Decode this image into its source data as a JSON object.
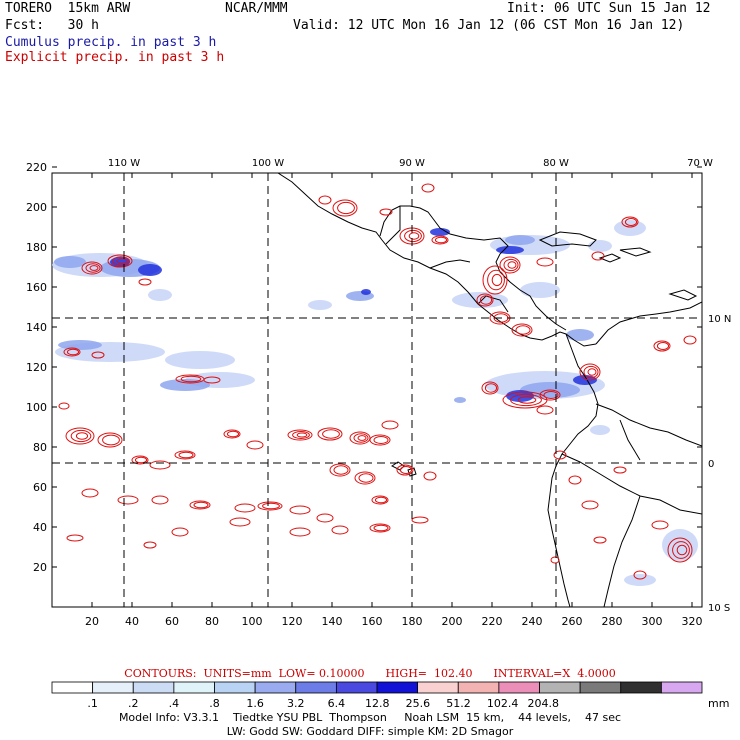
{
  "header": {
    "model": "TORERO  15km ARW",
    "org": "NCAR/MMM",
    "init": "Init: 06 UTC Sun 15 Jan 12",
    "fcst": "Fcst:   30 h",
    "valid": "Valid: 12 UTC Mon 16 Jan 12 (06 CST Mon 16 Jan 12)",
    "legend_cumulus": "Cumulus precip. in past 3 h",
    "legend_explicit": "Explicit precip. in past 3 h"
  },
  "map": {
    "top_lon_labels": [
      "110 W",
      "100 W",
      "90 W",
      "80 W",
      "70 W"
    ],
    "right_lat_labels": [
      "10 N",
      "0",
      "10 S"
    ],
    "x_ticks": [
      "20",
      "40",
      "60",
      "80",
      "100",
      "120",
      "140",
      "160",
      "180",
      "200",
      "220",
      "240",
      "260",
      "280",
      "300",
      "320"
    ],
    "y_ticks": [
      "20",
      "40",
      "60",
      "80",
      "100",
      "120",
      "140",
      "160",
      "180",
      "200",
      "220"
    ],
    "colors": {
      "explicit": "#dd1111",
      "cumulus_light": "#c6d3f7",
      "cumulus_mid": "#8ea6ef",
      "cumulus_dark": "#2233dd",
      "coast": "#000000"
    }
  },
  "contours_info": {
    "units": "CONTOURS:  UNITS=mm  LOW= 0.10000      HIGH=  102.40      INTERVAL=X  4.0000"
  },
  "colorbar": {
    "colors": [
      "#ffffff",
      "#e6f0fa",
      "#ccdcf5",
      "#e0f3f8",
      "#b9d3f5",
      "#9aacef",
      "#6c7de8",
      "#4a4ae0",
      "#1212d6",
      "#f9d1d1",
      "#f3b3b3",
      "#ec8fb8",
      "#b3b3b3",
      "#7a7a7a",
      "#303030",
      "#d7a8f0"
    ],
    "labels": [
      ".1",
      ".2",
      ".4",
      ".8",
      "1.6",
      "3.2",
      "6.4",
      "12.8",
      "25.6",
      "51.2",
      "102.4",
      "204.8"
    ],
    "unit": "mm"
  },
  "model_info": {
    "line1": "Model Info: V3.3.1    Tiedtke YSU PBL  Thompson     Noah LSM  15 km,    44 levels,    47 sec",
    "line2": "LW: Godd SW: Goddard DIFF: simple KM: 2D Smagor"
  }
}
